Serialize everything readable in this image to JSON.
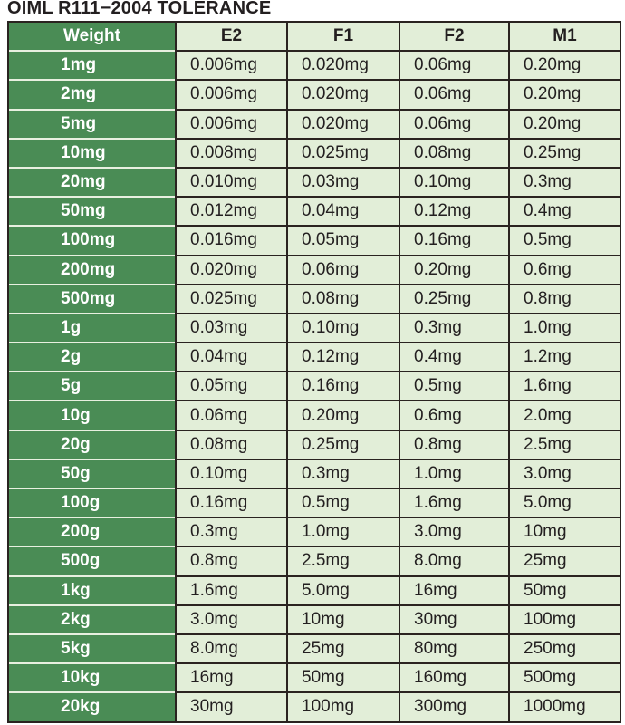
{
  "title": "OIML R111−2004 TOLERANCE",
  "colors": {
    "weight_column": "#4a8c55",
    "cell_background": "#e2eed8",
    "border": "#2a2320"
  },
  "columns": [
    "Weight",
    "E2",
    "F1",
    "F2",
    "M1"
  ],
  "rows": [
    [
      "1mg",
      "0.006mg",
      "0.020mg",
      "0.06mg",
      "0.20mg"
    ],
    [
      "2mg",
      "0.006mg",
      "0.020mg",
      "0.06mg",
      "0.20mg"
    ],
    [
      "5mg",
      "0.006mg",
      "0.020mg",
      "0.06mg",
      "0.20mg"
    ],
    [
      "10mg",
      "0.008mg",
      "0.025mg",
      "0.08mg",
      "0.25mg"
    ],
    [
      "20mg",
      "0.010mg",
      "0.03mg",
      "0.10mg",
      "0.3mg"
    ],
    [
      "50mg",
      "0.012mg",
      "0.04mg",
      "0.12mg",
      "0.4mg"
    ],
    [
      "100mg",
      "0.016mg",
      "0.05mg",
      "0.16mg",
      "0.5mg"
    ],
    [
      "200mg",
      "0.020mg",
      "0.06mg",
      "0.20mg",
      "0.6mg"
    ],
    [
      "500mg",
      "0.025mg",
      "0.08mg",
      "0.25mg",
      "0.8mg"
    ],
    [
      "1g",
      "0.03mg",
      "0.10mg",
      "0.3mg",
      "1.0mg"
    ],
    [
      "2g",
      "0.04mg",
      "0.12mg",
      "0.4mg",
      "1.2mg"
    ],
    [
      "5g",
      "0.05mg",
      "0.16mg",
      "0.5mg",
      "1.6mg"
    ],
    [
      "10g",
      "0.06mg",
      "0.20mg",
      "0.6mg",
      "2.0mg"
    ],
    [
      "20g",
      "0.08mg",
      "0.25mg",
      "0.8mg",
      "2.5mg"
    ],
    [
      "50g",
      "0.10mg",
      "0.3mg",
      "1.0mg",
      "3.0mg"
    ],
    [
      "100g",
      "0.16mg",
      "0.5mg",
      "1.6mg",
      "5.0mg"
    ],
    [
      "200g",
      "0.3mg",
      "1.0mg",
      "3.0mg",
      "10mg"
    ],
    [
      "500g",
      "0.8mg",
      "2.5mg",
      "8.0mg",
      "25mg"
    ],
    [
      "1kg",
      "1.6mg",
      "5.0mg",
      "16mg",
      "50mg"
    ],
    [
      "2kg",
      "3.0mg",
      "10mg",
      "30mg",
      "100mg"
    ],
    [
      "5kg",
      "8.0mg",
      "25mg",
      "80mg",
      "250mg"
    ],
    [
      "10kg",
      "16mg",
      "50mg",
      "160mg",
      "500mg"
    ],
    [
      "20kg",
      "30mg",
      "100mg",
      "300mg",
      "1000mg"
    ]
  ]
}
